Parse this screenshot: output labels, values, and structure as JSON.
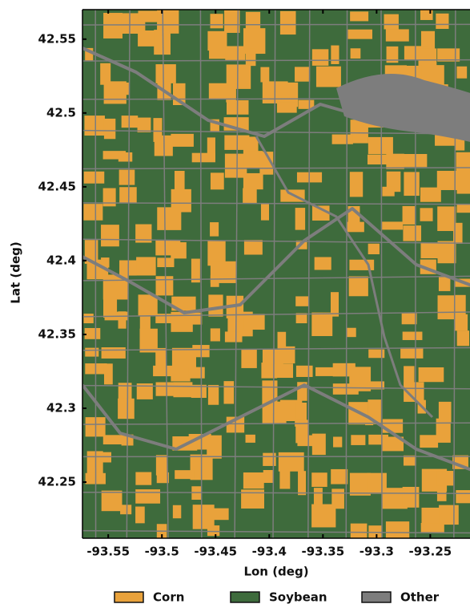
{
  "chart_data": {
    "type": "map",
    "xlabel": "Lon (deg)",
    "ylabel": "Lat (deg)",
    "xlim": [
      -93.574,
      -93.213
    ],
    "ylim": [
      42.212,
      42.57
    ],
    "xticks": [
      -93.55,
      -93.5,
      -93.45,
      -93.4,
      -93.35,
      -93.3,
      -93.25
    ],
    "yticks": [
      42.25,
      42.3,
      42.35,
      42.4,
      42.45,
      42.5,
      42.55
    ],
    "legend_position": "bottom",
    "classes": [
      {
        "name": "Corn",
        "color": "#e9a23b"
      },
      {
        "name": "Soybean",
        "color": "#3e6b3c"
      },
      {
        "name": "Other",
        "color": "#7d7d7d"
      }
    ]
  }
}
